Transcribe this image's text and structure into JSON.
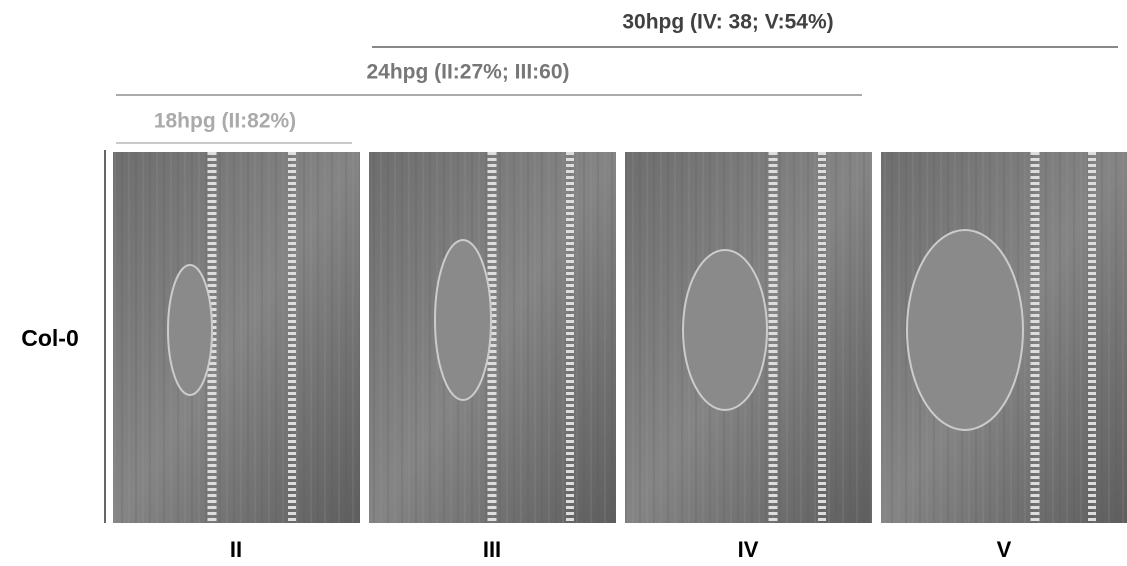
{
  "timepoints": [
    {
      "label": "30hpg (IV: 38; V:54%)"
    },
    {
      "label": "24hpg (II:27%; III:60)"
    },
    {
      "label": "18hpg (II:82%)"
    }
  ],
  "row_label": "Col-0",
  "panels": [
    {
      "label": "II"
    },
    {
      "label": "III"
    },
    {
      "label": "IV"
    },
    {
      "label": "V"
    }
  ]
}
